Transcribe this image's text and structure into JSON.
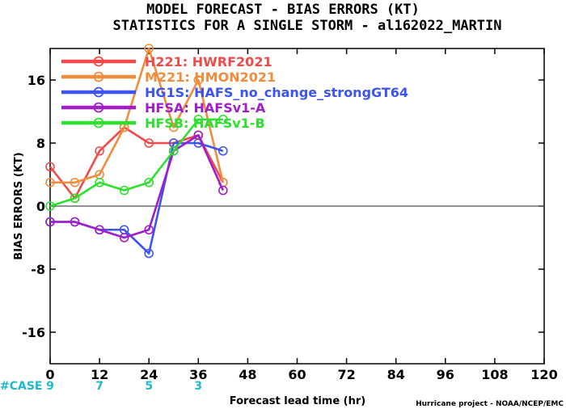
{
  "chart_data": {
    "type": "line",
    "title": "MODEL FORECAST - BIAS ERRORS (KT)",
    "subtitle": "STATISTICS FOR A SINGLE STORM - al162022_MARTIN",
    "xlabel": "Forecast lead time (hr)",
    "ylabel": "BIAS ERRORS (KT)",
    "xlim": [
      0,
      120
    ],
    "ylim": [
      -20,
      20
    ],
    "xticks": [
      0,
      12,
      24,
      36,
      48,
      60,
      72,
      84,
      96,
      108,
      120
    ],
    "yticks": [
      -16,
      -8,
      0,
      8,
      16
    ],
    "ytick_labels": [
      "-16",
      "-8",
      "0",
      "8",
      "16"
    ],
    "grid": false,
    "zero_line": true,
    "legend_position": "top-left",
    "case_label": "#CASE",
    "case_counts": [
      {
        "x": 0,
        "n": "9"
      },
      {
        "x": 12,
        "n": "7"
      },
      {
        "x": 24,
        "n": "5"
      },
      {
        "x": 36,
        "n": "3"
      }
    ],
    "credit": "Hurricane project - NOAA/NCEP/EMC",
    "series": [
      {
        "name": "H221: HWRF2021",
        "color": "#f04b4b",
        "x": [
          0,
          6,
          12,
          18,
          24,
          30,
          36,
          42
        ],
        "y": [
          5,
          1,
          7,
          10,
          8,
          8,
          9,
          3
        ]
      },
      {
        "name": "M221: HMON2021",
        "color": "#f08c3c",
        "x": [
          0,
          6,
          12,
          18,
          24,
          30,
          36,
          42
        ],
        "y": [
          3,
          3,
          4,
          10,
          20,
          10,
          16,
          3
        ]
      },
      {
        "name": "HG1S: HAFS_no_change_strongGT64",
        "color": "#3c55f0",
        "x": [
          0,
          6,
          12,
          18,
          24,
          30,
          36,
          42
        ],
        "y": [
          -2,
          -2,
          -3,
          -3,
          -6,
          8,
          8,
          7
        ]
      },
      {
        "name": "HFSA: HAFSv1-A",
        "color": "#a01ec8",
        "x": [
          0,
          6,
          12,
          18,
          24,
          30,
          36,
          42
        ],
        "y": [
          -2,
          -2,
          -3,
          -4,
          -3,
          7,
          9,
          2
        ]
      },
      {
        "name": "HFSB: HAFSv1-B",
        "color": "#2ee02e",
        "x": [
          0,
          6,
          12,
          18,
          24,
          30,
          36,
          42
        ],
        "y": [
          0,
          1,
          3,
          2,
          3,
          7,
          11,
          11
        ]
      }
    ]
  }
}
